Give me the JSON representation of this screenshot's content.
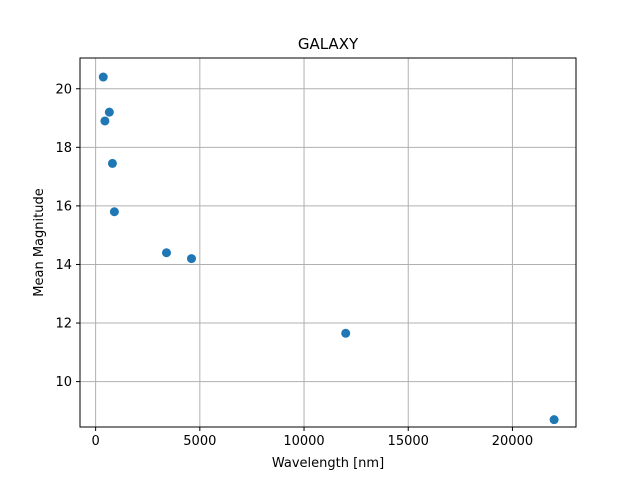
{
  "chart_data": {
    "type": "scatter",
    "title": "GALAXY",
    "xlabel": "Wavelength [nm]",
    "ylabel": "Mean Magnitude",
    "xlim": [
      -750,
      23050
    ],
    "ylim": [
      8.45,
      21.05
    ],
    "xticks": [
      0,
      5000,
      10000,
      15000,
      20000
    ],
    "xtick_labels": [
      "0",
      "5000",
      "10000",
      "15000",
      "20000"
    ],
    "yticks": [
      10,
      12,
      14,
      16,
      18,
      20
    ],
    "ytick_labels": [
      "10",
      "12",
      "14",
      "16",
      "18",
      "20"
    ],
    "grid": true,
    "marker_color": "#1f77b4",
    "series": [
      {
        "x": [
          365,
          445,
          658,
          806,
          900,
          3400,
          4600,
          12000,
          22000
        ],
        "y": [
          20.4,
          18.9,
          19.2,
          17.45,
          15.8,
          14.4,
          14.2,
          11.65,
          8.7
        ]
      }
    ]
  }
}
